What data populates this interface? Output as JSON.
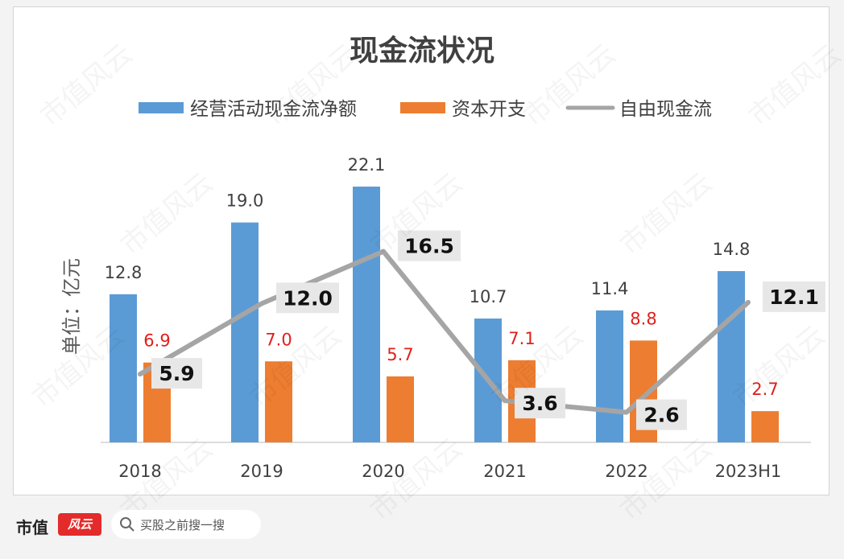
{
  "chart_data": {
    "type": "bar",
    "title": "现金流状况",
    "ylabel": "单位：亿元",
    "categories": [
      "2018",
      "2019",
      "2020",
      "2021",
      "2022",
      "2023H1"
    ],
    "series": [
      {
        "name": "经营活动现金流净额",
        "type": "bar",
        "color": "#5b9bd5",
        "values": [
          12.8,
          19.0,
          22.1,
          10.7,
          11.4,
          14.8
        ]
      },
      {
        "name": "资本开支",
        "type": "bar",
        "color": "#ed7d31",
        "values": [
          6.9,
          7.0,
          5.7,
          7.1,
          8.8,
          2.7
        ]
      },
      {
        "name": "自由现金流",
        "type": "line",
        "color": "#a5a5a5",
        "values": [
          5.9,
          12.0,
          16.5,
          3.6,
          2.6,
          12.1
        ]
      }
    ],
    "label_precision": 1,
    "ylim": [
      0,
      22.1
    ],
    "legend_position": "top",
    "grid": false
  },
  "footer": {
    "brand": "市值",
    "brand_logo": "风云",
    "search_placeholder": "买股之前搜一搜",
    "search_icon": "search-icon"
  },
  "watermark": "市值风云"
}
